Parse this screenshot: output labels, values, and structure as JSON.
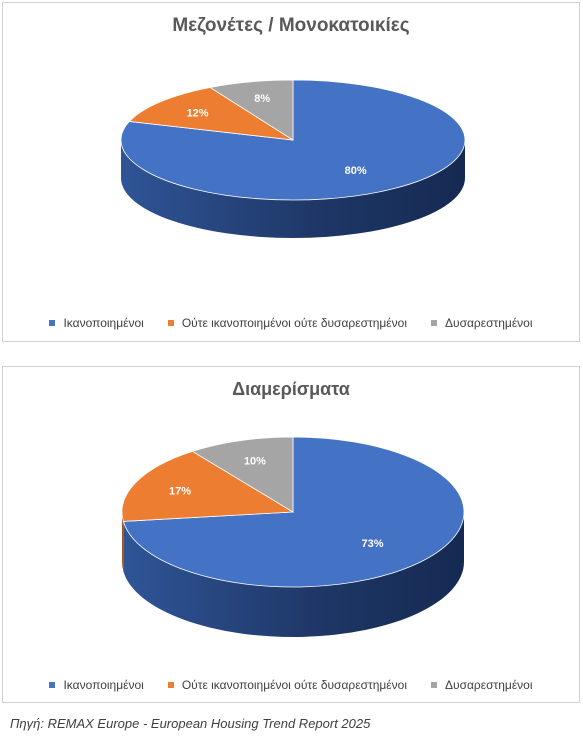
{
  "colors": {
    "blue": "#4472c4",
    "orange": "#ed7d31",
    "gray": "#a5a5a5"
  },
  "legend": {
    "items": [
      "Ικανοποιημένοι",
      "Ούτε ικανοποιημένοι ούτε δυσαρεστημένοι",
      "Δυσαρεστημένοι"
    ]
  },
  "source": "Πηγή: REMAX Europe - European Housing Trend Report 2025",
  "chart_data": [
    {
      "type": "pie",
      "title": "Μεζονέτες / Μονοκατοικίες",
      "categories": [
        "Ικανοποιημένοι",
        "Ούτε ικανοποιημένοι ούτε δυσαρεστημένοι",
        "Δυσαρεστημένοι"
      ],
      "values": [
        80,
        12,
        8
      ],
      "labels": [
        "80%",
        "12%",
        "8%"
      ],
      "legend_position": "bottom"
    },
    {
      "type": "pie",
      "title": "Διαμερίσματα",
      "categories": [
        "Ικανοποιημένοι",
        "Ούτε ικανοποιημένοι ούτε δυσαρεστημένοι",
        "Δυσαρεστημένοι"
      ],
      "values": [
        73,
        17,
        10
      ],
      "labels": [
        "73%",
        "17%",
        "10%"
      ],
      "legend_position": "bottom"
    }
  ]
}
